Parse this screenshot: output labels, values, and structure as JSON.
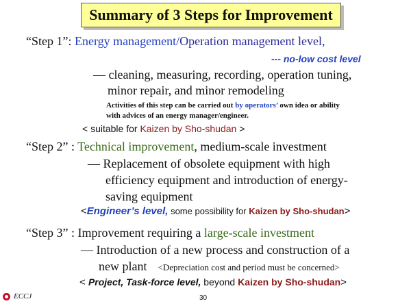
{
  "title": "Summary of 3 Steps for Improvement",
  "step1": {
    "label": "“Step 1”: ",
    "heading_a": "Energy management/",
    "heading_b": "Operation management level,",
    "level": "--- no-low cost level",
    "line1": "— cleaning, measuring, recording, operation tuning,",
    "line2": "minor repair, and minor remodeling",
    "note1_a": "Activities of this step can be carried out ",
    "note1_b": "by operators’",
    "note1_c": " own idea or ability",
    "note2": "with advices of an energy manager/engineer.",
    "suit_a": "< suitable for ",
    "suit_b": "Kaizen by Sho-shudan",
    "suit_c": " >"
  },
  "step2": {
    "label": "“Step 2” : ",
    "heading_a": "Technical improvement",
    "heading_b": ", medium-scale investment",
    "line1": "— Replacement of obsolete equipment with high",
    "line2": "efficiency equipment and introduction of energy-",
    "line3": "saving equipment",
    "eng_a": "<",
    "eng_b": "Engineer’s level,",
    "eng_c": " some possibility for ",
    "eng_d": "Kaizen by Sho-shudan",
    "eng_e": ">"
  },
  "step3": {
    "label": "“Step 3” : Improvement requiring a ",
    "heading_b": "large-scale investment",
    "line1": "— Introduction of a new process and construction of a",
    "line2": "new plant",
    "dep": "<Depreciation cost and period must be concerned>",
    "proj_a": "< ",
    "proj_b": "Project, Task-force level,",
    "proj_c": " beyond ",
    "proj_d": "Kaizen by Sho-shudan",
    "proj_e": ">"
  },
  "footer": {
    "org": "ECCJ",
    "page": "30"
  },
  "colors": {
    "title_bg": "#ffff99",
    "blue": "#1f3fbf",
    "green": "#3a6a1a",
    "dark_red": "#8b1a1a"
  }
}
